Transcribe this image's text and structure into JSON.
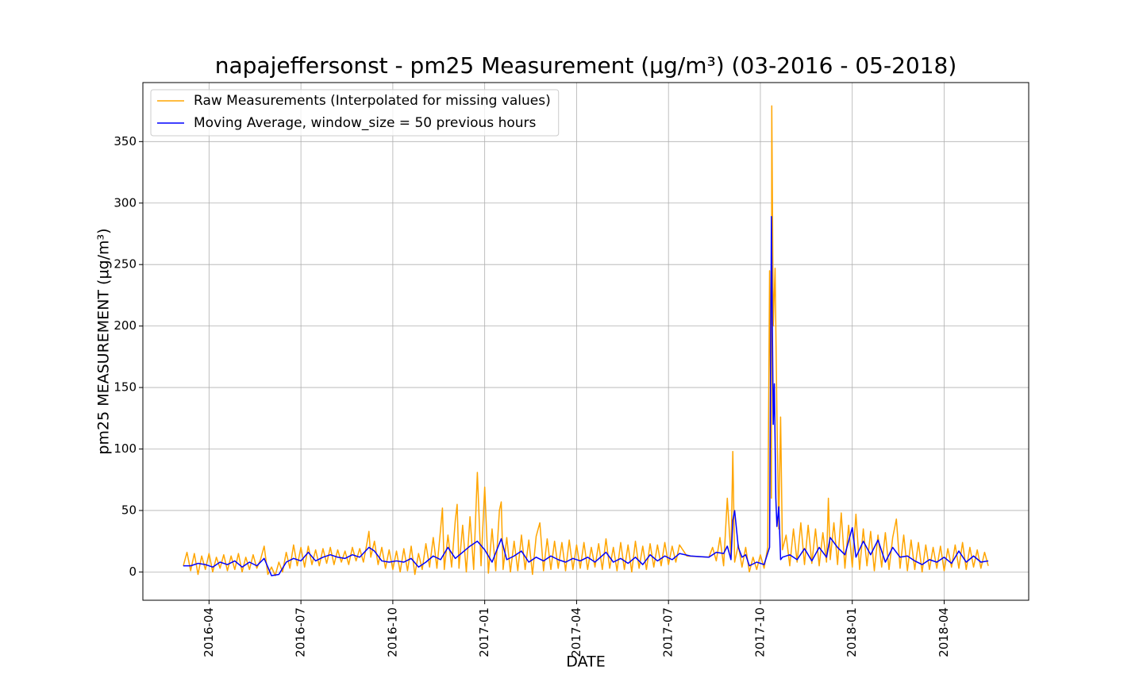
{
  "chart_data": {
    "type": "line",
    "title": "napajeffersonst - pm25 Measurement (µg/m³) (03-2016 - 05-2018)",
    "x_label": "DATE",
    "y_label": "pm25 MEASUREMENT (µg/m³)",
    "xlim": [
      2016.07,
      2018.48
    ],
    "ylim": [
      -23,
      398
    ],
    "xticks": [
      {
        "value": 2016.25,
        "label": "2016-04"
      },
      {
        "value": 2016.5,
        "label": "2016-07"
      },
      {
        "value": 2016.75,
        "label": "2016-10"
      },
      {
        "value": 2017.0,
        "label": "2017-01"
      },
      {
        "value": 2017.25,
        "label": "2017-04"
      },
      {
        "value": 2017.5,
        "label": "2017-07"
      },
      {
        "value": 2017.75,
        "label": "2017-10"
      },
      {
        "value": 2018.0,
        "label": "2018-01"
      },
      {
        "value": 2018.25,
        "label": "2018-04"
      }
    ],
    "yticks": [
      0,
      50,
      100,
      150,
      200,
      250,
      300,
      350
    ],
    "grid": true,
    "legend": "upper left",
    "series": [
      {
        "name": "Raw Measurements (Interpolated for missing values)",
        "color": "orange",
        "x": [
          2016.18,
          2016.19,
          2016.2,
          2016.21,
          2016.22,
          2016.23,
          2016.24,
          2016.25,
          2016.26,
          2016.27,
          2016.28,
          2016.29,
          2016.3,
          2016.31,
          2016.32,
          2016.33,
          2016.34,
          2016.35,
          2016.36,
          2016.37,
          2016.38,
          2016.39,
          2016.4,
          2016.41,
          2016.42,
          2016.43,
          2016.44,
          2016.45,
          2016.46,
          2016.47,
          2016.48,
          2016.49,
          2016.5,
          2016.51,
          2016.52,
          2016.53,
          2016.54,
          2016.55,
          2016.56,
          2016.57,
          2016.58,
          2016.59,
          2016.6,
          2016.61,
          2016.62,
          2016.63,
          2016.64,
          2016.65,
          2016.66,
          2016.67,
          2016.68,
          2016.685,
          2016.69,
          2016.7,
          2016.71,
          2016.72,
          2016.73,
          2016.74,
          2016.75,
          2016.76,
          2016.77,
          2016.78,
          2016.79,
          2016.8,
          2016.81,
          2016.82,
          2016.83,
          2016.84,
          2016.85,
          2016.86,
          2016.87,
          2016.88,
          2016.885,
          2016.89,
          2016.9,
          2016.91,
          2016.92,
          2016.925,
          2016.93,
          2016.94,
          2016.95,
          2016.96,
          2016.97,
          2016.98,
          2016.99,
          2017.0,
          2017.01,
          2017.02,
          2017.03,
          2017.04,
          2017.045,
          2017.05,
          2017.06,
          2017.07,
          2017.08,
          2017.09,
          2017.1,
          2017.11,
          2017.12,
          2017.13,
          2017.14,
          2017.15,
          2017.16,
          2017.17,
          2017.18,
          2017.19,
          2017.2,
          2017.21,
          2017.22,
          2017.23,
          2017.24,
          2017.25,
          2017.26,
          2017.27,
          2017.28,
          2017.29,
          2017.3,
          2017.31,
          2017.32,
          2017.33,
          2017.34,
          2017.35,
          2017.36,
          2017.37,
          2017.38,
          2017.39,
          2017.4,
          2017.41,
          2017.42,
          2017.43,
          2017.44,
          2017.45,
          2017.46,
          2017.47,
          2017.48,
          2017.49,
          2017.5,
          2017.51,
          2017.52,
          2017.53,
          2017.55,
          2017.61,
          2017.62,
          2017.63,
          2017.64,
          2017.65,
          2017.66,
          2017.67,
          2017.675,
          2017.68,
          2017.69,
          2017.7,
          2017.71,
          2017.72,
          2017.73,
          2017.74,
          2017.75,
          2017.76,
          2017.77,
          2017.775,
          2017.78,
          2017.781,
          2017.785,
          2017.79,
          2017.795,
          2017.8,
          2017.805,
          2017.81,
          2017.82,
          2017.83,
          2017.84,
          2017.85,
          2017.86,
          2017.87,
          2017.88,
          2017.89,
          2017.9,
          2017.91,
          2017.92,
          2017.93,
          2017.935,
          2017.94,
          2017.95,
          2017.96,
          2017.97,
          2017.98,
          2017.99,
          2018.0,
          2018.01,
          2018.02,
          2018.03,
          2018.04,
          2018.05,
          2018.06,
          2018.07,
          2018.08,
          2018.09,
          2018.1,
          2018.11,
          2018.12,
          2018.13,
          2018.14,
          2018.15,
          2018.16,
          2018.17,
          2018.18,
          2018.19,
          2018.2,
          2018.21,
          2018.22,
          2018.23,
          2018.24,
          2018.25,
          2018.26,
          2018.27,
          2018.28,
          2018.29,
          2018.3,
          2018.31,
          2018.32,
          2018.33,
          2018.34,
          2018.35,
          2018.36,
          2018.37
        ],
        "values": [
          5,
          16,
          1,
          15,
          -2,
          13,
          2,
          15,
          0,
          12,
          3,
          14,
          1,
          13,
          2,
          15,
          0,
          12,
          2,
          14,
          3,
          10,
          21,
          -2,
          4,
          -3,
          8,
          0,
          16,
          3,
          22,
          5,
          20,
          4,
          21,
          6,
          18,
          5,
          19,
          7,
          20,
          6,
          18,
          8,
          17,
          6,
          20,
          9,
          19,
          8,
          24,
          33,
          12,
          25,
          6,
          20,
          3,
          18,
          2,
          17,
          0,
          19,
          1,
          21,
          -2,
          15,
          2,
          23,
          4,
          28,
          3,
          35,
          52,
          2,
          30,
          4,
          42,
          55,
          3,
          38,
          0,
          45,
          2,
          81,
          5,
          69,
          -1,
          35,
          1,
          50,
          57,
          2,
          28,
          0,
          25,
          1,
          30,
          2,
          26,
          -2,
          29,
          40,
          1,
          27,
          2,
          25,
          3,
          24,
          1,
          26,
          2,
          22,
          3,
          24,
          2,
          20,
          4,
          23,
          2,
          27,
          3,
          20,
          1,
          24,
          2,
          22,
          0,
          25,
          3,
          21,
          2,
          23,
          4,
          22,
          5,
          24,
          6,
          21,
          8,
          22,
          13,
          12,
          20,
          9,
          28,
          5,
          60,
          12,
          98,
          8,
          22,
          4,
          20,
          0,
          12,
          2,
          14,
          3,
          20,
          245,
          60,
          379,
          200,
          247,
          128,
          35,
          126,
          18,
          30,
          5,
          35,
          8,
          40,
          6,
          38,
          7,
          35,
          5,
          32,
          8,
          60,
          10,
          40,
          6,
          48,
          3,
          38,
          4,
          47,
          2,
          35,
          5,
          33,
          1,
          30,
          4,
          32,
          2,
          28,
          43,
          3,
          30,
          1,
          26,
          2,
          24,
          0,
          22,
          2,
          20,
          3,
          21,
          1,
          19,
          4,
          22,
          3,
          24,
          2,
          20,
          4,
          18,
          3,
          16,
          5
        ]
      },
      {
        "name": "Moving Average, window_size = 50 previous hours",
        "color": "blue",
        "x": [
          2016.18,
          2016.2,
          2016.22,
          2016.24,
          2016.26,
          2016.28,
          2016.3,
          2016.32,
          2016.34,
          2016.36,
          2016.38,
          2016.4,
          2016.42,
          2016.44,
          2016.46,
          2016.48,
          2016.5,
          2016.52,
          2016.54,
          2016.56,
          2016.58,
          2016.6,
          2016.62,
          2016.64,
          2016.66,
          2016.685,
          2016.7,
          2016.72,
          2016.74,
          2016.76,
          2016.78,
          2016.8,
          2016.82,
          2016.84,
          2016.86,
          2016.88,
          2016.9,
          2016.92,
          2016.94,
          2016.96,
          2016.98,
          2017.0,
          2017.02,
          2017.045,
          2017.06,
          2017.08,
          2017.1,
          2017.12,
          2017.14,
          2017.16,
          2017.18,
          2017.2,
          2017.22,
          2017.24,
          2017.26,
          2017.28,
          2017.3,
          2017.33,
          2017.35,
          2017.37,
          2017.39,
          2017.41,
          2017.43,
          2017.45,
          2017.47,
          2017.49,
          2017.51,
          2017.53,
          2017.56,
          2017.61,
          2017.63,
          2017.65,
          2017.66,
          2017.67,
          2017.675,
          2017.68,
          2017.69,
          2017.7,
          2017.71,
          2017.72,
          2017.74,
          2017.76,
          2017.775,
          2017.78,
          2017.785,
          2017.788,
          2017.792,
          2017.795,
          2017.8,
          2017.805,
          2017.81,
          2017.83,
          2017.85,
          2017.87,
          2017.89,
          2017.91,
          2017.93,
          2017.94,
          2017.96,
          2017.98,
          2018.0,
          2018.01,
          2018.03,
          2018.05,
          2018.07,
          2018.09,
          2018.11,
          2018.13,
          2018.15,
          2018.17,
          2018.19,
          2018.21,
          2018.23,
          2018.25,
          2018.27,
          2018.29,
          2018.31,
          2018.33,
          2018.35,
          2018.37
        ],
        "values": [
          5,
          5,
          7,
          6,
          4,
          8,
          6,
          9,
          4,
          8,
          5,
          11,
          -3,
          -2,
          8,
          11,
          9,
          16,
          9,
          12,
          14,
          12,
          11,
          14,
          12,
          20,
          17,
          9,
          8,
          9,
          8,
          11,
          4,
          8,
          13,
          10,
          20,
          11,
          16,
          21,
          25,
          18,
          8,
          27,
          10,
          13,
          17,
          8,
          12,
          9,
          13,
          10,
          8,
          11,
          9,
          12,
          8,
          16,
          8,
          11,
          7,
          12,
          6,
          14,
          9,
          13,
          10,
          15,
          13,
          12,
          16,
          15,
          21,
          10,
          42,
          50,
          20,
          12,
          14,
          5,
          8,
          6,
          20,
          289,
          120,
          153,
          60,
          37,
          53,
          10,
          12,
          14,
          10,
          19,
          9,
          20,
          12,
          28,
          20,
          14,
          36,
          12,
          25,
          14,
          26,
          8,
          20,
          12,
          13,
          9,
          6,
          10,
          8,
          12,
          7,
          17,
          8,
          13,
          8,
          9
        ]
      }
    ]
  }
}
